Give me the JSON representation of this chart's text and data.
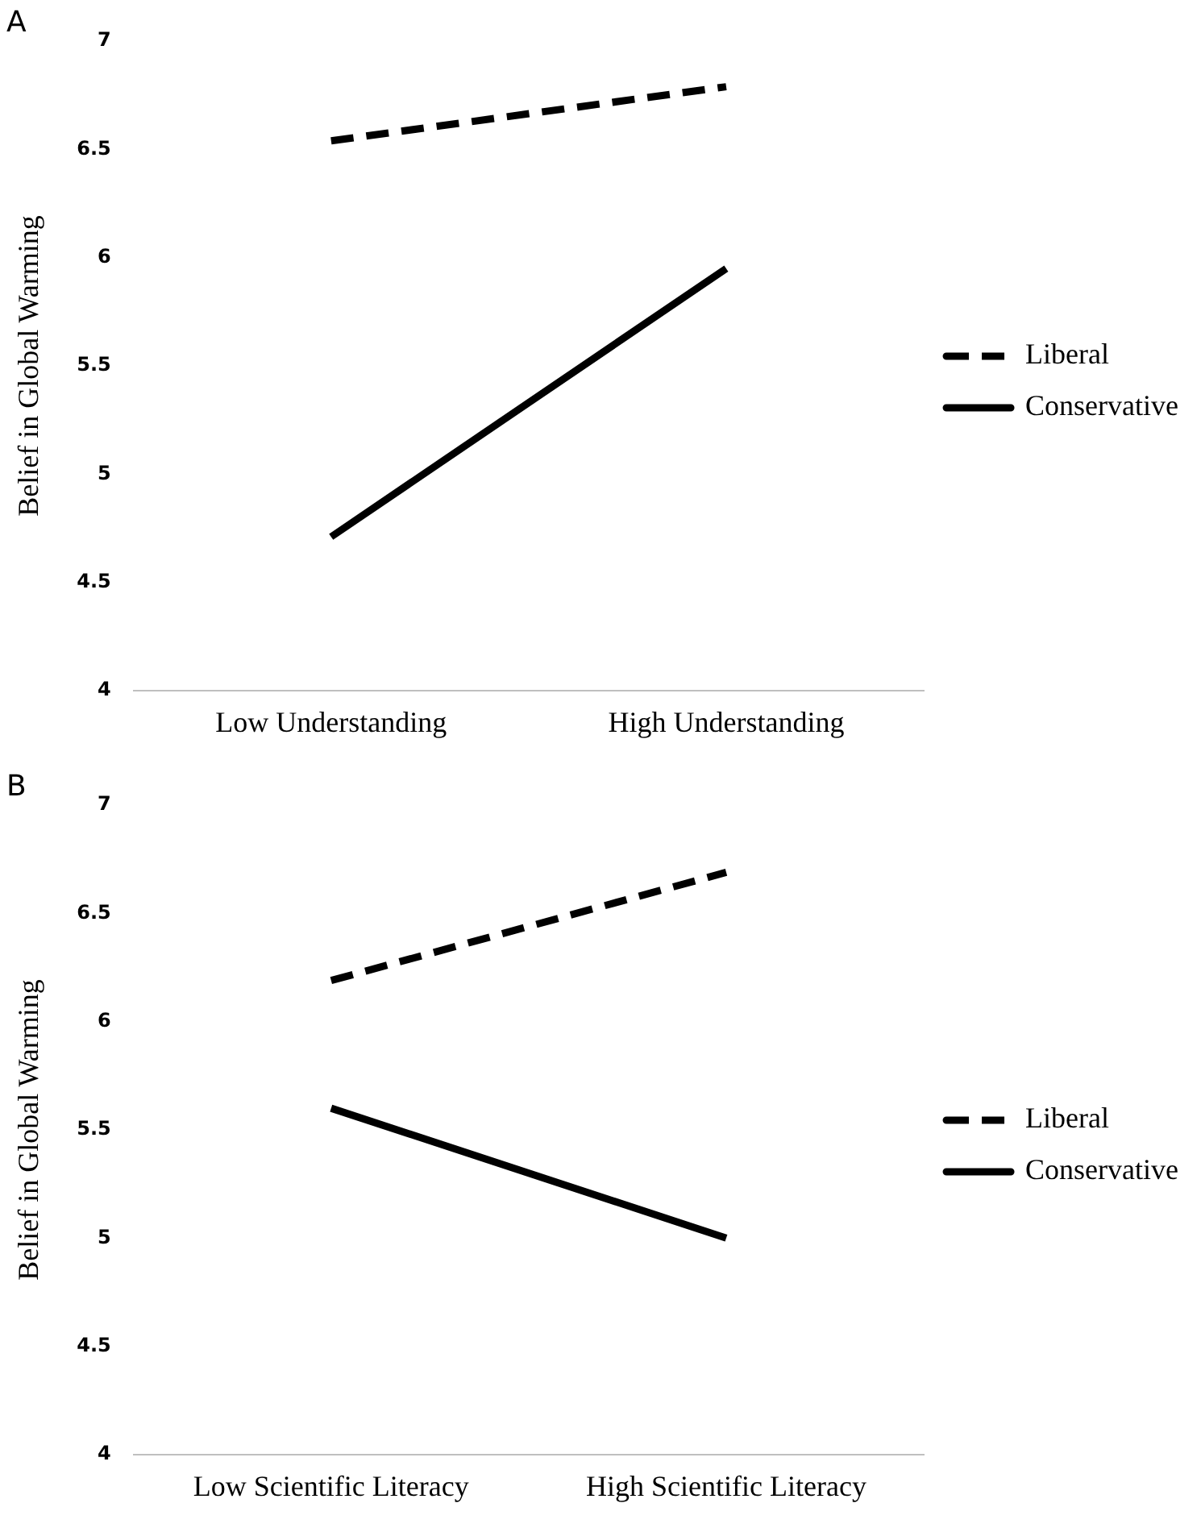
{
  "chart_data": [
    {
      "type": "line",
      "title": "A",
      "ylabel": "Belief in Global Warming",
      "categories": [
        "Low Understanding",
        "High Understanding"
      ],
      "series": [
        {
          "name": "Liberal",
          "color": "#000000",
          "values": [
            6.54,
            6.79
          ],
          "line_style": "dashed"
        },
        {
          "name": "Conservative",
          "color": "#000000",
          "values": [
            4.71,
            5.95
          ],
          "line_style": "solid"
        }
      ],
      "ylim": [
        4,
        7
      ],
      "yticks": [
        4,
        4.5,
        5,
        5.5,
        6,
        6.5,
        7
      ],
      "grid": false,
      "legend": "right",
      "marker": "none"
    },
    {
      "type": "line",
      "title": "B",
      "ylabel": "Belief in Global Warming",
      "categories": [
        "Low Scientific Literacy",
        "High Scientific Literacy"
      ],
      "series": [
        {
          "name": "Liberal",
          "color": "#000000",
          "values": [
            6.19,
            6.69
          ],
          "line_style": "dashed"
        },
        {
          "name": "Conservative",
          "color": "#000000",
          "values": [
            5.6,
            5.0
          ],
          "line_style": "solid"
        }
      ],
      "ylim": [
        4,
        7
      ],
      "yticks": [
        4,
        4.5,
        5,
        5.5,
        6,
        6.5,
        7
      ],
      "grid": false,
      "legend": "right",
      "marker": "none"
    }
  ]
}
